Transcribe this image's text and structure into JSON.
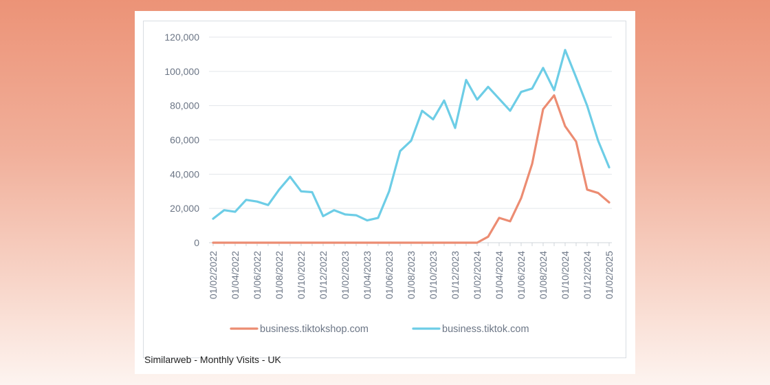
{
  "chart_data": {
    "type": "line",
    "caption": "Similarweb - Monthly Visits - UK",
    "x": [
      "01/02/2022",
      "01/03/2022",
      "01/04/2022",
      "01/05/2022",
      "01/06/2022",
      "01/07/2022",
      "01/08/2022",
      "01/09/2022",
      "01/10/2022",
      "01/11/2022",
      "01/12/2022",
      "01/01/2023",
      "01/02/2023",
      "01/03/2023",
      "01/04/2023",
      "01/05/2023",
      "01/06/2023",
      "01/07/2023",
      "01/08/2023",
      "01/09/2023",
      "01/10/2023",
      "01/11/2023",
      "01/12/2023",
      "01/01/2024",
      "01/02/2024",
      "01/03/2024",
      "01/04/2024",
      "01/05/2024",
      "01/06/2024",
      "01/07/2024",
      "01/08/2024",
      "01/09/2024",
      "01/10/2024",
      "01/11/2024",
      "01/12/2024",
      "01/01/2025",
      "01/02/2025"
    ],
    "x_tick_labels": [
      "01/02/2022",
      "01/04/2022",
      "01/06/2022",
      "01/08/2022",
      "01/10/2022",
      "01/12/2022",
      "01/02/2023",
      "01/04/2023",
      "01/06/2023",
      "01/08/2023",
      "01/10/2023",
      "01/12/2023",
      "01/02/2024",
      "01/04/2024",
      "01/06/2024",
      "01/08/2024",
      "01/10/2024",
      "01/12/2024",
      "01/02/2025"
    ],
    "ylim": [
      0,
      120000
    ],
    "y_ticks": [
      "0",
      "20,000",
      "40,000",
      "60,000",
      "80,000",
      "100,000",
      "120,000"
    ],
    "y_tick_values": [
      0,
      20000,
      40000,
      60000,
      80000,
      100000,
      120000
    ],
    "grid": true,
    "legend_position": "bottom",
    "series": [
      {
        "name": "business.tiktokshop.com",
        "color": "#ec8c72",
        "values": [
          0,
          0,
          0,
          0,
          0,
          0,
          0,
          0,
          0,
          0,
          0,
          0,
          0,
          0,
          0,
          0,
          0,
          0,
          0,
          0,
          0,
          0,
          0,
          0,
          0,
          3500,
          14500,
          12500,
          26000,
          46000,
          78000,
          86000,
          68000,
          59000,
          31000,
          29000,
          23500
        ]
      },
      {
        "name": "business.tiktok.com",
        "color": "#6dcde6",
        "values": [
          14000,
          19000,
          18000,
          25000,
          24000,
          22000,
          31000,
          38500,
          30000,
          29500,
          15500,
          19000,
          16500,
          16000,
          13000,
          14500,
          30000,
          53500,
          59500,
          77000,
          72000,
          83000,
          67000,
          95000,
          83500,
          91000,
          84000,
          77000,
          88000,
          90000,
          102000,
          89000,
          112500,
          96500,
          80000,
          59500,
          44000
        ]
      }
    ]
  }
}
